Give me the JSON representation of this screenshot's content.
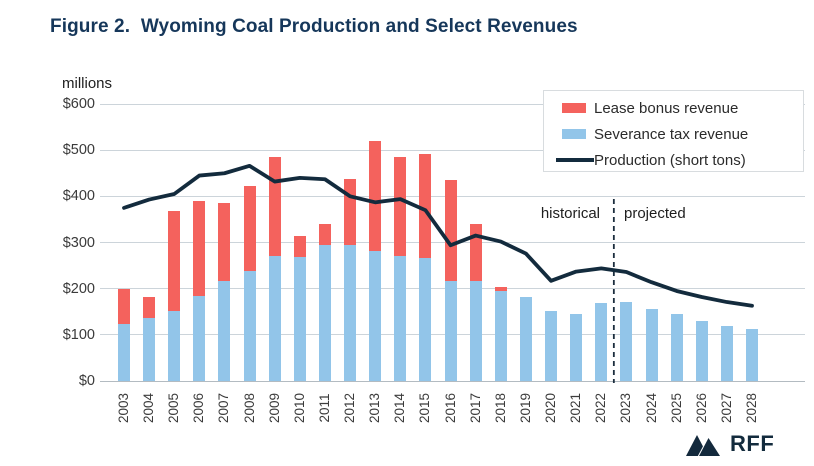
{
  "title": "Figure 2.  Wyoming Coal Production and Select Revenues",
  "unit_label": "millions",
  "annotations": {
    "historical": "historical",
    "projected": "projected"
  },
  "logo": {
    "text": "RFF"
  },
  "colors": {
    "title_navy": "#16375a",
    "lease_bonus_red": "#f4625d",
    "severance_blue": "#92c5e9",
    "production_navy": "#132b3d",
    "gridline": "#ccd4da",
    "axis_line": "#b3bbc1",
    "divider": "#1c2e3e",
    "text_dark": "#2b2b2b"
  },
  "legend": {
    "items": [
      {
        "label": "Lease bonus revenue",
        "swatch": "bar",
        "color": "#f4625d"
      },
      {
        "label": "Severance tax revenue",
        "swatch": "bar",
        "color": "#92c5e9"
      },
      {
        "label": "Production (short tons)",
        "swatch": "line",
        "color": "#132b3d"
      }
    ]
  },
  "chart_data": {
    "type": "combo-stacked-bar-line",
    "title": "Figure 2. Wyoming Coal Production and Select Revenues",
    "ylabel": "millions",
    "xlabel": "",
    "ylim": [
      0,
      600
    ],
    "ytick_step": 100,
    "yticks": [
      "$0",
      "$100",
      "$200",
      "$300",
      "$400",
      "$500",
      "$600"
    ],
    "grid": true,
    "legend_position": "top-right",
    "stacked": true,
    "categories": [
      "2003",
      "2004",
      "2005",
      "2006",
      "2007",
      "2008",
      "2009",
      "2010",
      "2011",
      "2012",
      "2013",
      "2014",
      "2015",
      "2016",
      "2017",
      "2018",
      "2019",
      "2020",
      "2021",
      "2022",
      "2023",
      "2024",
      "2025",
      "2026",
      "2027",
      "2028"
    ],
    "series": [
      {
        "name": "Severance tax revenue",
        "type": "bar",
        "color": "#92c5e9",
        "values": [
          123,
          137,
          151,
          185,
          216,
          239,
          270,
          268,
          294,
          294,
          282,
          270,
          267,
          216,
          217,
          195,
          183,
          152,
          146,
          170,
          172,
          155,
          145,
          130,
          120,
          112
        ]
      },
      {
        "name": "Lease bonus revenue",
        "type": "bar",
        "color": "#f4625d",
        "values": [
          77,
          46,
          217,
          205,
          169,
          183,
          215,
          46,
          46,
          143,
          238,
          215,
          225,
          219,
          123,
          8,
          0,
          0,
          0,
          0,
          0,
          0,
          0,
          0,
          0,
          0
        ]
      },
      {
        "name": "Production (short tons)",
        "type": "line",
        "color": "#132b3d",
        "values": [
          375,
          393,
          405,
          445,
          450,
          466,
          432,
          440,
          437,
          400,
          387,
          394,
          370,
          294,
          315,
          302,
          276,
          217,
          237,
          244,
          236,
          214,
          195,
          182,
          171,
          163
        ]
      }
    ],
    "divider": {
      "between": [
        "2022",
        "2023"
      ],
      "left_label": "historical",
      "right_label": "projected"
    }
  }
}
